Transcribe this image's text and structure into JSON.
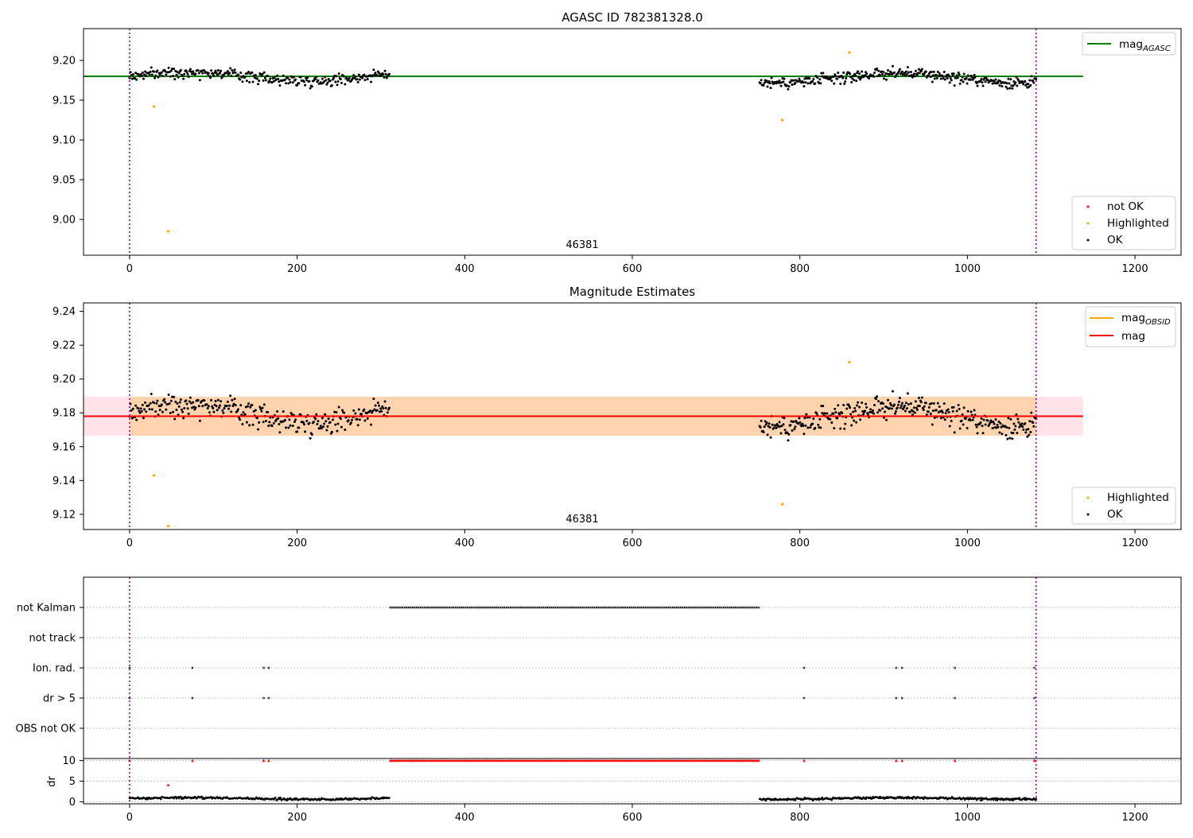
{
  "chart_data": [
    {
      "type": "scatter",
      "title": "AGASC ID 782381328.0",
      "annotation": "46381",
      "xlim": [
        -55,
        1255
      ],
      "ylim": [
        8.955,
        9.24
      ],
      "xticks": [
        0,
        200,
        400,
        600,
        800,
        1000,
        1200
      ],
      "yticks": [
        9.0,
        9.05,
        9.1,
        9.15,
        9.2
      ],
      "ytick_labels": [
        "9.00",
        "9.05",
        "9.10",
        "9.15",
        "9.20"
      ],
      "vlines": [
        0,
        1082
      ],
      "hline": {
        "y": 9.18,
        "x_range": [
          -55,
          1138
        ],
        "color": "#008000"
      },
      "segments": [
        {
          "x_start": 0,
          "x_end": 310,
          "n": 300,
          "center": 9.18,
          "amplitude": 0.016
        },
        {
          "x_start": 752,
          "x_end": 1082,
          "n": 350,
          "center": 9.178,
          "amplitude": 0.017
        }
      ],
      "highlighted": [
        {
          "x": 29,
          "y": 9.142
        },
        {
          "x": 46,
          "y": 8.985
        },
        {
          "x": 779,
          "y": 9.125
        },
        {
          "x": 859,
          "y": 9.21
        }
      ],
      "legend_top": [
        {
          "label": "mag",
          "subscript": "AGASC",
          "color": "#008000",
          "style": "line"
        }
      ],
      "legend_bottom": [
        {
          "label": "not OK",
          "color": "#ff0000",
          "style": "dot"
        },
        {
          "label": "Highlighted",
          "color": "#ffa500",
          "style": "dot"
        },
        {
          "label": "OK",
          "color": "#000000",
          "style": "dot"
        }
      ]
    },
    {
      "type": "scatter",
      "title": "Magnitude Estimates",
      "annotation": "46381",
      "xlim": [
        -55,
        1255
      ],
      "ylim": [
        9.111,
        9.245
      ],
      "xticks": [
        0,
        200,
        400,
        600,
        800,
        1000,
        1200
      ],
      "yticks": [
        9.12,
        9.14,
        9.16,
        9.18,
        9.2,
        9.22,
        9.24
      ],
      "ytick_labels": [
        "9.12",
        "9.14",
        "9.16",
        "9.18",
        "9.20",
        "9.22",
        "9.24"
      ],
      "vlines": [
        0,
        1082
      ],
      "band_pink": {
        "y_low": 9.1665,
        "y_high": 9.1895,
        "x_range": [
          -55,
          1138
        ]
      },
      "band_orange": {
        "y_low": 9.1665,
        "y_high": 9.1895,
        "x_range": [
          0,
          1082
        ]
      },
      "mag_line": {
        "y": 9.178,
        "x_range": [
          -55,
          1138
        ],
        "color": "#ff0000"
      },
      "obsid_line": {
        "y": 9.178,
        "x_range": [
          0,
          1082
        ],
        "color": "#ffa500"
      },
      "segments": [
        {
          "x_start": 0,
          "x_end": 310,
          "n": 300,
          "center": 9.18,
          "amplitude": 0.016
        },
        {
          "x_start": 752,
          "x_end": 1082,
          "n": 350,
          "center": 9.178,
          "amplitude": 0.017
        }
      ],
      "highlighted": [
        {
          "x": 29,
          "y": 9.143
        },
        {
          "x": 46,
          "y": 9.113
        },
        {
          "x": 779,
          "y": 9.126
        },
        {
          "x": 859,
          "y": 9.21
        }
      ],
      "legend_top": [
        {
          "label": "mag",
          "subscript": "OBSID",
          "color": "#ffa500",
          "style": "line"
        },
        {
          "label": "mag",
          "subscript": "",
          "color": "#ff0000",
          "style": "line"
        }
      ],
      "legend_bottom": [
        {
          "label": "Highlighted",
          "color": "#ffa500",
          "style": "dot"
        },
        {
          "label": "OK",
          "color": "#000000",
          "style": "dot"
        }
      ]
    },
    {
      "type": "scatter",
      "xlim": [
        -55,
        1255
      ],
      "xticks": [
        0,
        200,
        400,
        600,
        800,
        1000,
        1200
      ],
      "flag_rows": [
        "not Kalman",
        "not track",
        "Ion. rad.",
        "dr > 5",
        "OBS not OK"
      ],
      "flags": {
        "not Kalman": {
          "x_start": 311,
          "x_end": 752
        },
        "not track": {
          "points": []
        },
        "Ion. rad.": {
          "points": [
            0,
            75,
            160,
            166,
            805,
            915,
            922,
            985,
            1080
          ]
        },
        "dr > 5": {
          "points": [
            0,
            75,
            160,
            166,
            805,
            915,
            922,
            985,
            1080
          ]
        },
        "OBS not OK": {
          "points": []
        }
      },
      "dr_ylim": [
        -0.5,
        10.5
      ],
      "dr_yticks": [
        0,
        5,
        10
      ],
      "dr_ylabel": "dr",
      "dr_high": {
        "value": 10,
        "ranges": [
          [
            311,
            752
          ]
        ],
        "points": [
          0,
          75,
          160,
          166,
          805,
          915,
          922,
          985,
          1080
        ],
        "color": "#ff0000"
      },
      "dr_outlier": {
        "x": 46,
        "y": 4,
        "color": "#ff0000"
      },
      "dr_segments": [
        {
          "x_start": 0,
          "x_end": 310,
          "n": 300,
          "center": 0.8,
          "amplitude": 0.6
        },
        {
          "x_start": 752,
          "x_end": 1082,
          "n": 350,
          "center": 0.8,
          "amplitude": 0.6
        }
      ],
      "vlines": [
        0,
        1082
      ]
    }
  ]
}
